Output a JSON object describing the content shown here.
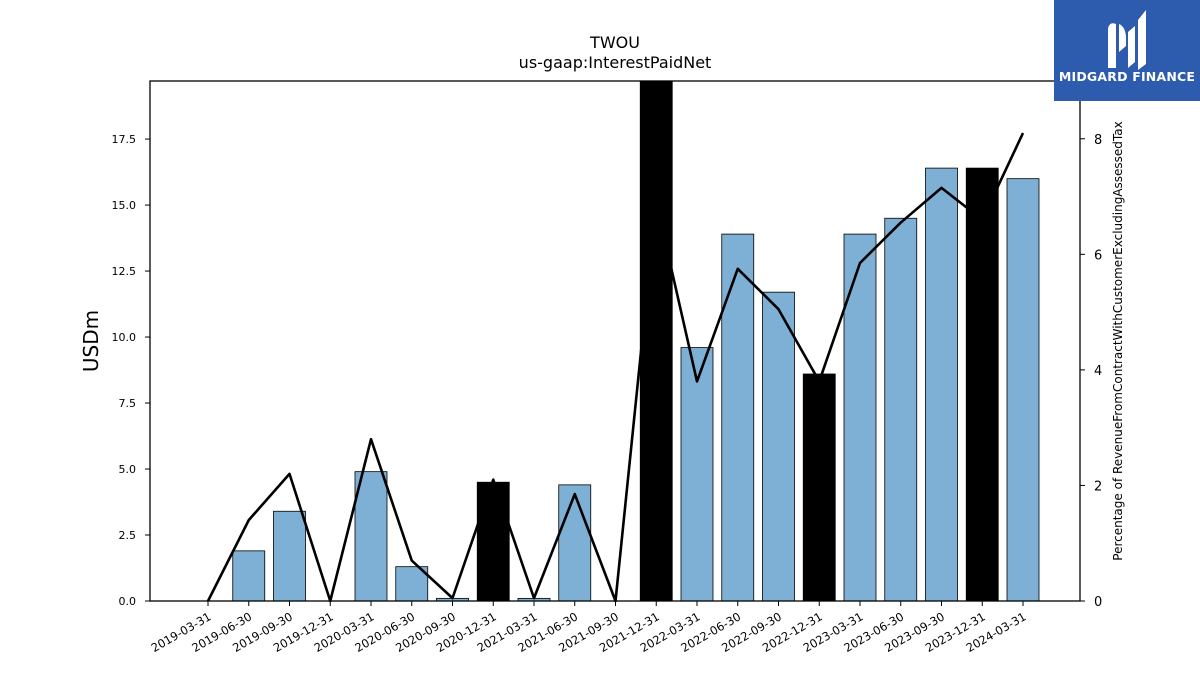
{
  "chart_data": {
    "type": "bar",
    "title": "TWOU",
    "subtitle": "us-gaap:InterestPaidNet",
    "ylabel": "USDm",
    "y2label": "Percentage of RevenueFromContractWithCustomerExcludingAssessedTax",
    "ylim": [
      0,
      19.7
    ],
    "y2lim": [
      0,
      9.0
    ],
    "yticks": [
      "0.0",
      "2.5",
      "5.0",
      "7.5",
      "10.0",
      "12.5",
      "15.0",
      "17.5"
    ],
    "y2ticks": [
      "0",
      "2",
      "4",
      "6",
      "8"
    ],
    "categories": [
      "2019-03-31",
      "2019-06-30",
      "2019-09-30",
      "2019-12-31",
      "2020-03-31",
      "2020-06-30",
      "2020-09-30",
      "2020-12-31",
      "2021-03-31",
      "2021-06-30",
      "2021-09-30",
      "2021-12-31",
      "2022-03-31",
      "2022-06-30",
      "2022-09-30",
      "2022-12-31",
      "2023-03-31",
      "2023-06-30",
      "2023-09-30",
      "2023-12-31",
      "2024-03-31"
    ],
    "series": [
      {
        "kind": "bar",
        "axis": "left",
        "values": [
          0,
          1.9,
          3.4,
          0,
          4.9,
          1.3,
          0.1,
          4.5,
          0.1,
          4.4,
          0,
          19.7,
          9.6,
          13.9,
          11.7,
          8.6,
          13.9,
          14.5,
          16.4,
          16.4,
          16.0
        ],
        "highlight": [
          false,
          false,
          false,
          false,
          false,
          false,
          false,
          true,
          false,
          false,
          false,
          true,
          false,
          false,
          false,
          true,
          false,
          false,
          false,
          true,
          false
        ],
        "color": "#7eb0d5",
        "highlight_color": "#000000"
      },
      {
        "kind": "line",
        "axis": "right",
        "values": [
          0,
          1.4,
          2.2,
          0,
          2.8,
          0.7,
          0.05,
          2.1,
          0.05,
          1.85,
          0,
          6.9,
          3.8,
          5.75,
          5.05,
          3.8,
          5.85,
          6.55,
          7.15,
          6.6,
          8.1
        ],
        "color": "#000000"
      }
    ],
    "grid": false,
    "legend": "none"
  },
  "logo": {
    "text": "MIDGARD FINANCE",
    "icon": "midgard-logo-icon",
    "background": "#2d5cae"
  }
}
